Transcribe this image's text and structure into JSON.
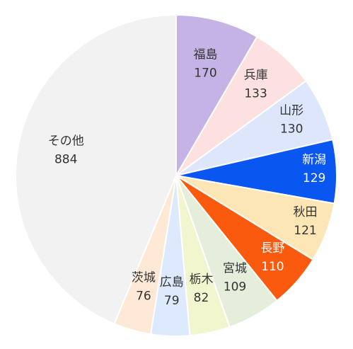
{
  "chart_data": {
    "type": "pie",
    "title": "",
    "start_angle_deg": 0,
    "direction": "clockwise",
    "slices": [
      {
        "label": "福島",
        "value": 170,
        "color": "#c5b3e6",
        "text_color": "#333333"
      },
      {
        "label": "兵庫",
        "value": 133,
        "color": "#fde0e0",
        "text_color": "#333333"
      },
      {
        "label": "山形",
        "value": 130,
        "color": "#dde6fa",
        "text_color": "#333333"
      },
      {
        "label": "新潟",
        "value": 129,
        "color": "#0a56f0",
        "text_color": "#ffffff"
      },
      {
        "label": "秋田",
        "value": 121,
        "color": "#fde6b5",
        "text_color": "#333333"
      },
      {
        "label": "長野",
        "value": 110,
        "color": "#fa5a0e",
        "text_color": "#ffffff"
      },
      {
        "label": "宮城",
        "value": 109,
        "color": "#e4eedb",
        "text_color": "#333333"
      },
      {
        "label": "栃木",
        "value": 82,
        "color": "#f2f6cf",
        "text_color": "#333333"
      },
      {
        "label": "広島",
        "value": 79,
        "color": "#ddeafd",
        "text_color": "#333333"
      },
      {
        "label": "茨城",
        "value": 76,
        "color": "#fde9d6",
        "text_color": "#333333"
      },
      {
        "label": "その他",
        "value": 884,
        "color": "#f2f2f2",
        "text_color": "#333333"
      }
    ]
  }
}
